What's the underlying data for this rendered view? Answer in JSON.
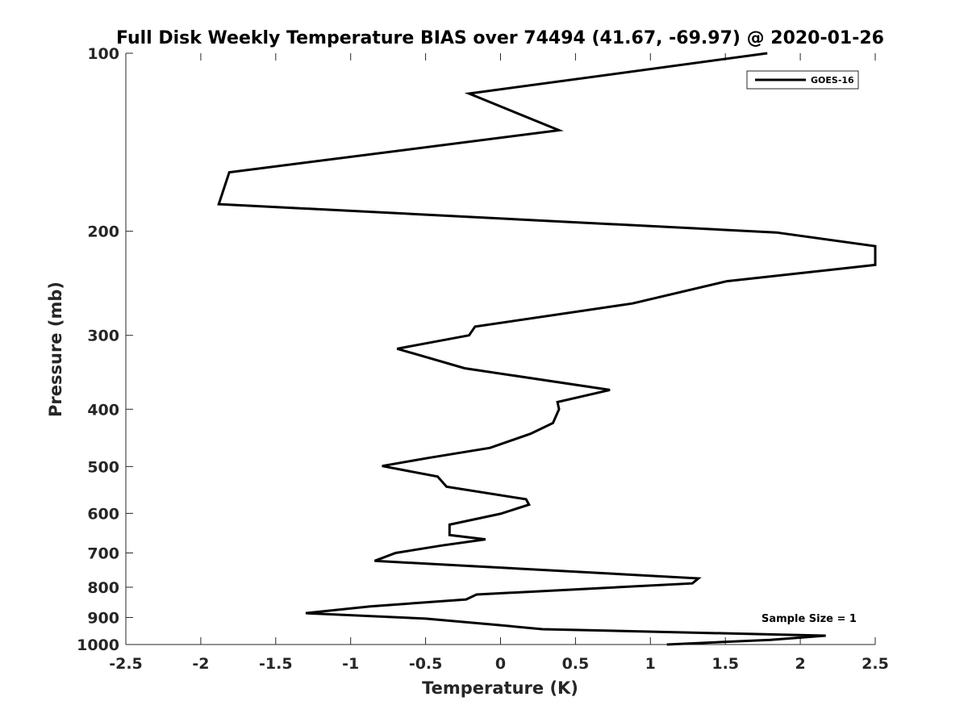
{
  "chart_data": {
    "type": "line",
    "title": "Full Disk Weekly Temperature BIAS over 74494 (41.67, -69.97) @ 2020-01-26",
    "xlabel": "Temperature (K)",
    "ylabel": "Pressure (mb)",
    "xlim": [
      -2.5,
      2.5
    ],
    "ylim": [
      100,
      1000
    ],
    "y_scale": "log",
    "y_reversed": true,
    "grid": false,
    "legend_position": "top-right",
    "x_ticks": [
      -2.5,
      -2,
      -1.5,
      -1,
      -0.5,
      0,
      0.5,
      1,
      1.5,
      2,
      2.5
    ],
    "x_tick_labels": [
      "-2.5",
      "-2",
      "-1.5",
      "-1",
      "-0.5",
      "0",
      "0.5",
      "1",
      "1.5",
      "2",
      "2.5"
    ],
    "y_ticks": [
      100,
      200,
      300,
      400,
      500,
      600,
      700,
      800,
      900,
      1000
    ],
    "y_tick_labels": [
      "100",
      "200",
      "300",
      "400",
      "500",
      "600",
      "700",
      "800",
      "900",
      "1000"
    ],
    "annotation": "Sample Size = 1",
    "series": [
      {
        "name": "GOES-16",
        "color": "#000000",
        "points": [
          {
            "x": 1.78,
            "p": 100
          },
          {
            "x": -0.21,
            "p": 117
          },
          {
            "x": 0.39,
            "p": 135
          },
          {
            "x": -1.81,
            "p": 159
          },
          {
            "x": -1.88,
            "p": 180
          },
          {
            "x": 1.84,
            "p": 201
          },
          {
            "x": 2.5,
            "p": 212
          },
          {
            "x": 2.5,
            "p": 228
          },
          {
            "x": 1.51,
            "p": 243
          },
          {
            "x": 0.88,
            "p": 265
          },
          {
            "x": -0.17,
            "p": 290
          },
          {
            "x": -0.21,
            "p": 300
          },
          {
            "x": -0.69,
            "p": 316
          },
          {
            "x": -0.24,
            "p": 341
          },
          {
            "x": 0.73,
            "p": 371
          },
          {
            "x": 0.38,
            "p": 389
          },
          {
            "x": 0.39,
            "p": 400
          },
          {
            "x": 0.35,
            "p": 422
          },
          {
            "x": 0.2,
            "p": 440
          },
          {
            "x": -0.07,
            "p": 465
          },
          {
            "x": -0.47,
            "p": 483
          },
          {
            "x": -0.79,
            "p": 499
          },
          {
            "x": -0.42,
            "p": 520
          },
          {
            "x": -0.36,
            "p": 541
          },
          {
            "x": 0.17,
            "p": 568
          },
          {
            "x": 0.19,
            "p": 580
          },
          {
            "x": 0.0,
            "p": 601
          },
          {
            "x": -0.34,
            "p": 627
          },
          {
            "x": -0.34,
            "p": 653
          },
          {
            "x": -0.1,
            "p": 664
          },
          {
            "x": -0.39,
            "p": 680
          },
          {
            "x": -0.7,
            "p": 700
          },
          {
            "x": -0.84,
            "p": 722
          },
          {
            "x": -0.27,
            "p": 735
          },
          {
            "x": 1.32,
            "p": 773
          },
          {
            "x": 1.28,
            "p": 788
          },
          {
            "x": -0.16,
            "p": 823
          },
          {
            "x": -0.23,
            "p": 839
          },
          {
            "x": -0.87,
            "p": 862
          },
          {
            "x": -1.3,
            "p": 885
          },
          {
            "x": -0.5,
            "p": 904
          },
          {
            "x": -0.05,
            "p": 925
          },
          {
            "x": 0.28,
            "p": 942
          },
          {
            "x": 2.17,
            "p": 966
          },
          {
            "x": 1.8,
            "p": 982
          },
          {
            "x": 1.11,
            "p": 1000
          }
        ]
      }
    ]
  }
}
